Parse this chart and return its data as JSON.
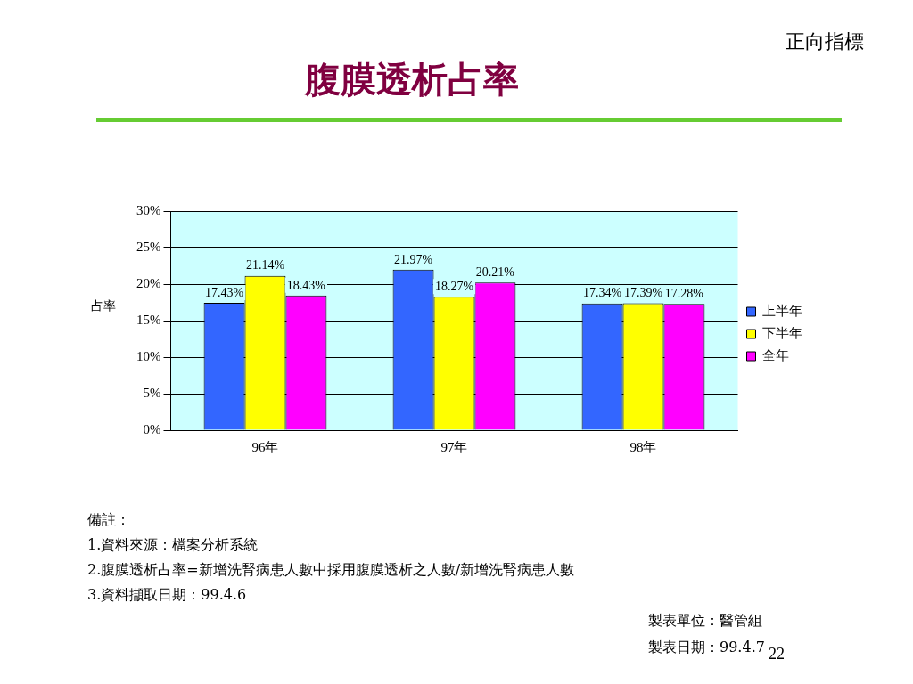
{
  "chart_data": {
    "type": "bar",
    "title": "腹膜透析占率",
    "subtitle": "正向指標",
    "ylabel": "占率",
    "categories": [
      "96年",
      "97年",
      "98年"
    ],
    "series": [
      {
        "name": "上半年",
        "color": "#3366ff",
        "values": [
          17.43,
          21.97,
          17.34
        ],
        "value_labels": [
          "17.43%",
          "21.97%",
          "17.34%"
        ]
      },
      {
        "name": "下半年",
        "color": "#ffff00",
        "values": [
          21.14,
          18.27,
          17.39
        ],
        "value_labels": [
          "21.14%",
          "18.27%",
          "17.39%"
        ]
      },
      {
        "name": "全年",
        "color": "#ff00ff",
        "values": [
          18.43,
          20.21,
          17.28
        ],
        "value_labels": [
          "18.43%",
          "20.21%",
          "17.28%"
        ]
      }
    ],
    "ylim": [
      0,
      30
    ],
    "yticks": [
      {
        "value": 0,
        "label": "0%"
      },
      {
        "value": 5,
        "label": "5%"
      },
      {
        "value": 10,
        "label": "10%"
      },
      {
        "value": 15,
        "label": "15%"
      },
      {
        "value": 20,
        "label": "20%"
      },
      {
        "value": 25,
        "label": "25%"
      },
      {
        "value": 30,
        "label": "30%"
      }
    ],
    "grid": "y",
    "legend": "right",
    "annotations": [
      "備註：",
      "1.資料來源：檔案分析系統",
      "2.腹膜透析占率=新增洗腎病患人數中採用腹膜透析之人數/新增洗腎病患人數",
      "3.資料擷取日期：99.4.6",
      "製表單位：醫管組",
      "製表日期：99.4.7",
      "22"
    ]
  }
}
